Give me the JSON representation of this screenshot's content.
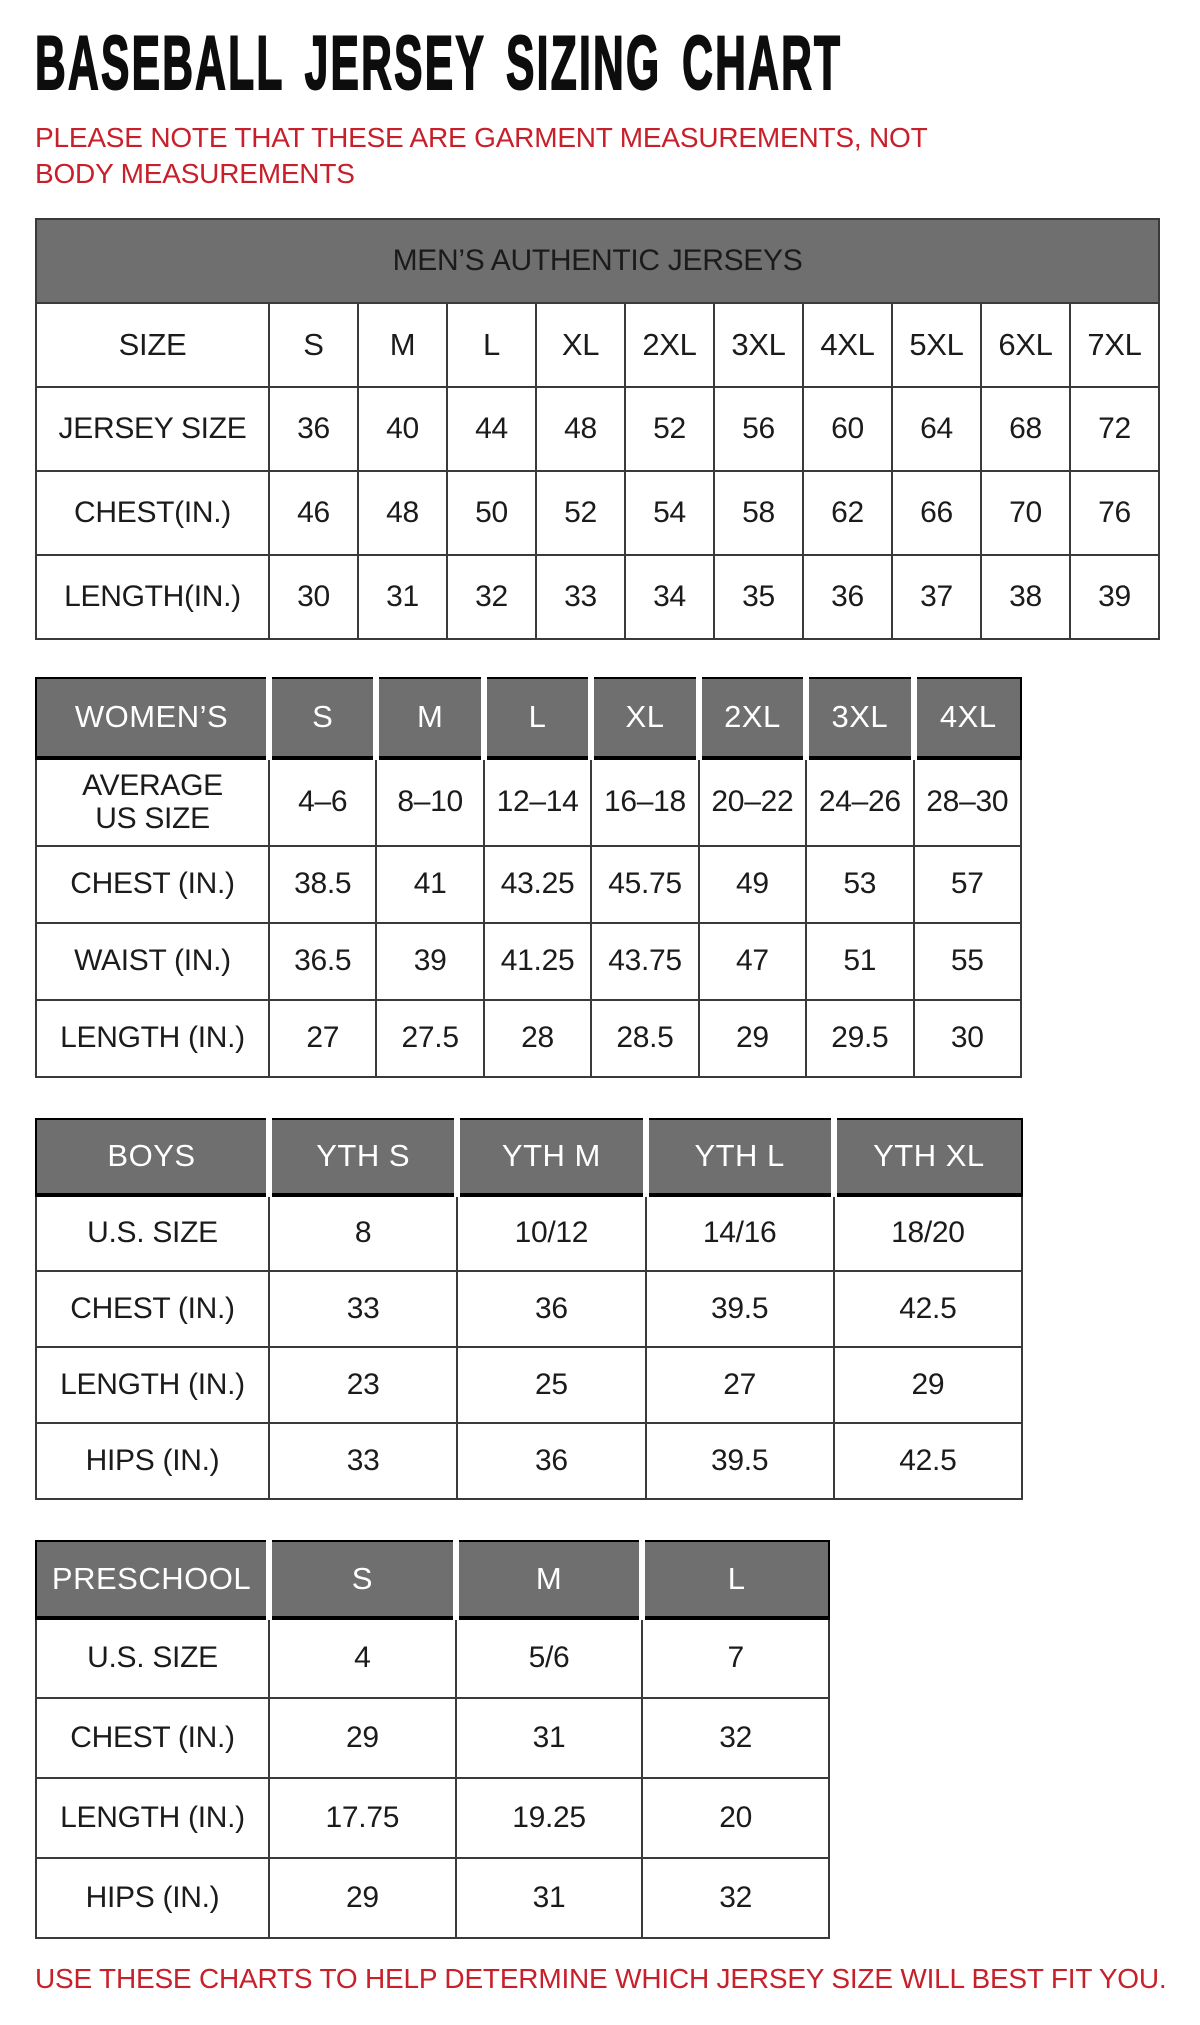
{
  "page": {
    "title": "BASEBALL JERSEY SIZING CHART",
    "subtitle": "PLEASE NOTE THAT THESE ARE GARMENT MEASUREMENTS, NOT BODY MEASUREMENTS",
    "footer": "USE THESE CHARTS TO HELP DETERMINE WHICH JERSEY SIZE WILL BEST FIT YOU.",
    "colors": {
      "accent_red": "#C8202A",
      "header_gray": "#6F6F6F"
    }
  },
  "tables": [
    {
      "id": "mens",
      "banner": "MEN’S AUTHENTIC JERSEYS",
      "columns": [
        "SIZE",
        "S",
        "M",
        "L",
        "XL",
        "2XL",
        "3XL",
        "4XL",
        "5XL",
        "6XL",
        "7XL"
      ],
      "rows": [
        {
          "label": "JERSEY SIZE",
          "values": [
            "36",
            "40",
            "44",
            "48",
            "52",
            "56",
            "60",
            "64",
            "68",
            "72"
          ]
        },
        {
          "label": "CHEST(IN.)",
          "values": [
            "46",
            "48",
            "50",
            "52",
            "54",
            "58",
            "62",
            "66",
            "70",
            "76"
          ]
        },
        {
          "label": "LENGTH(IN.)",
          "values": [
            "30",
            "31",
            "32",
            "33",
            "34",
            "35",
            "36",
            "37",
            "38",
            "39"
          ]
        }
      ]
    },
    {
      "id": "womens",
      "header": [
        "WOMEN’S",
        "S",
        "M",
        "L",
        "XL",
        "2XL",
        "3XL",
        "4XL"
      ],
      "rows": [
        {
          "label": "AVERAGE\nUS SIZE",
          "values": [
            "4–6",
            "8–10",
            "12–14",
            "16–18",
            "20–22",
            "24–26",
            "28–30"
          ]
        },
        {
          "label": "CHEST (IN.)",
          "values": [
            "38.5",
            "41",
            "43.25",
            "45.75",
            "49",
            "53",
            "57"
          ]
        },
        {
          "label": "WAIST (IN.)",
          "values": [
            "36.5",
            "39",
            "41.25",
            "43.75",
            "47",
            "51",
            "55"
          ]
        },
        {
          "label": "LENGTH (IN.)",
          "values": [
            "27",
            "27.5",
            "28",
            "28.5",
            "29",
            "29.5",
            "30"
          ]
        }
      ]
    },
    {
      "id": "boys",
      "header": [
        "BOYS",
        "YTH S",
        "YTH M",
        "YTH L",
        "YTH XL"
      ],
      "rows": [
        {
          "label": "U.S. SIZE",
          "values": [
            "8",
            "10/12",
            "14/16",
            "18/20"
          ]
        },
        {
          "label": "CHEST (IN.)",
          "values": [
            "33",
            "36",
            "39.5",
            "42.5"
          ]
        },
        {
          "label": "LENGTH (IN.)",
          "values": [
            "23",
            "25",
            "27",
            "29"
          ]
        },
        {
          "label": "HIPS (IN.)",
          "values": [
            "33",
            "36",
            "39.5",
            "42.5"
          ]
        }
      ]
    },
    {
      "id": "preschool",
      "header": [
        "PRESCHOOL",
        "S",
        "M",
        "L"
      ],
      "rows": [
        {
          "label": "U.S. SIZE",
          "values": [
            "4",
            "5/6",
            "7"
          ]
        },
        {
          "label": "CHEST (IN.)",
          "values": [
            "29",
            "31",
            "32"
          ]
        },
        {
          "label": "LENGTH (IN.)",
          "values": [
            "17.75",
            "19.25",
            "20"
          ]
        },
        {
          "label": "HIPS (IN.)",
          "values": [
            "29",
            "31",
            "32"
          ]
        }
      ]
    }
  ]
}
